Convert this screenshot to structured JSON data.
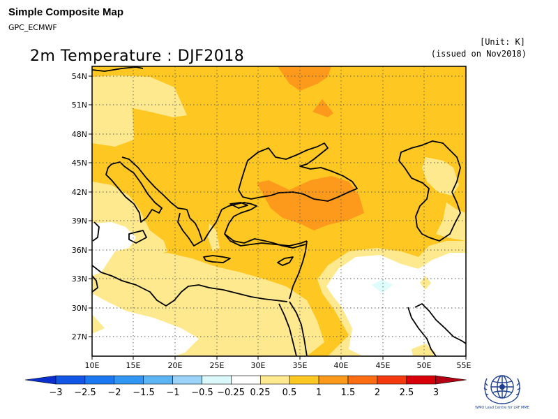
{
  "header": {
    "title": "Simple Composite Map",
    "subtitle": "GPC_ECMWF",
    "unit": "[Unit: K]",
    "issued": "(issued on Nov2018)"
  },
  "map": {
    "title": "2m Temperature : DJF2018",
    "lat_labels": [
      "54N",
      "51N",
      "48N",
      "45N",
      "42N",
      "39N",
      "36N",
      "33N",
      "30N",
      "27N"
    ],
    "lon_labels": [
      "10E",
      "15E",
      "20E",
      "25E",
      "30E",
      "35E",
      "40E",
      "45E",
      "50E",
      "55E"
    ],
    "colors": {
      "white": "#ffffff",
      "light": "#fee98f",
      "mid": "#fec722",
      "dark": "#fd9a1c",
      "cyan": "#dffcfd"
    }
  },
  "colorbar": {
    "labels": [
      "−3",
      "−2.5",
      "−2",
      "−1.5",
      "−1",
      "−0.5",
      "−0.25",
      "0.25",
      "0.5",
      "1",
      "1.5",
      "2",
      "2.5",
      "3"
    ],
    "colors": [
      "#0a2fcc",
      "#1256e6",
      "#1a78f0",
      "#3297f2",
      "#5db4f5",
      "#9ad2f8",
      "#dbf9fb",
      "#ffffff",
      "#fee98f",
      "#fec722",
      "#fd9a1c",
      "#fc6d14",
      "#f43a0c",
      "#d9000a",
      "#b30012"
    ]
  },
  "logo": {
    "text": "WMO Lead Centre for LRF MME"
  }
}
